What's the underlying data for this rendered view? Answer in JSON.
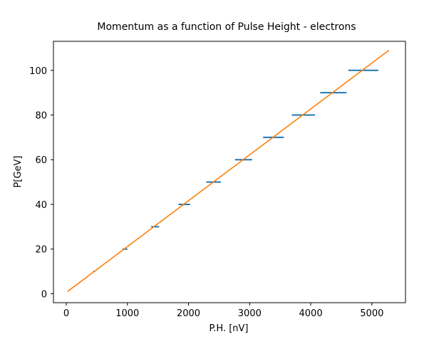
{
  "chart_data": {
    "type": "scatter",
    "title": "Momentum as a function of Pulse Height - electrons",
    "xlabel": "P.H. [nV]",
    "ylabel": "P[GeV]",
    "xlim": [
      -210,
      5550
    ],
    "ylim": [
      -4,
      113
    ],
    "xticks": [
      0,
      1000,
      2000,
      3000,
      4000,
      5000
    ],
    "yticks": [
      0,
      20,
      40,
      60,
      80,
      100
    ],
    "grid": false,
    "colors": {
      "measurements": "#1f77b4",
      "fit": "#ff7f0e"
    },
    "series": [
      {
        "kind": "errorbar",
        "x": [
          455,
          960,
          1455,
          1930,
          2410,
          2900,
          3390,
          3880,
          4370,
          4860
        ],
        "y": [
          10,
          20,
          30,
          40,
          50,
          60,
          70,
          80,
          90,
          100
        ],
        "xerr": [
          15,
          40,
          65,
          95,
          120,
          140,
          170,
          190,
          215,
          245
        ]
      },
      {
        "kind": "line",
        "x": [
          20,
          5280
        ],
        "y": [
          1,
          109
        ]
      }
    ]
  }
}
